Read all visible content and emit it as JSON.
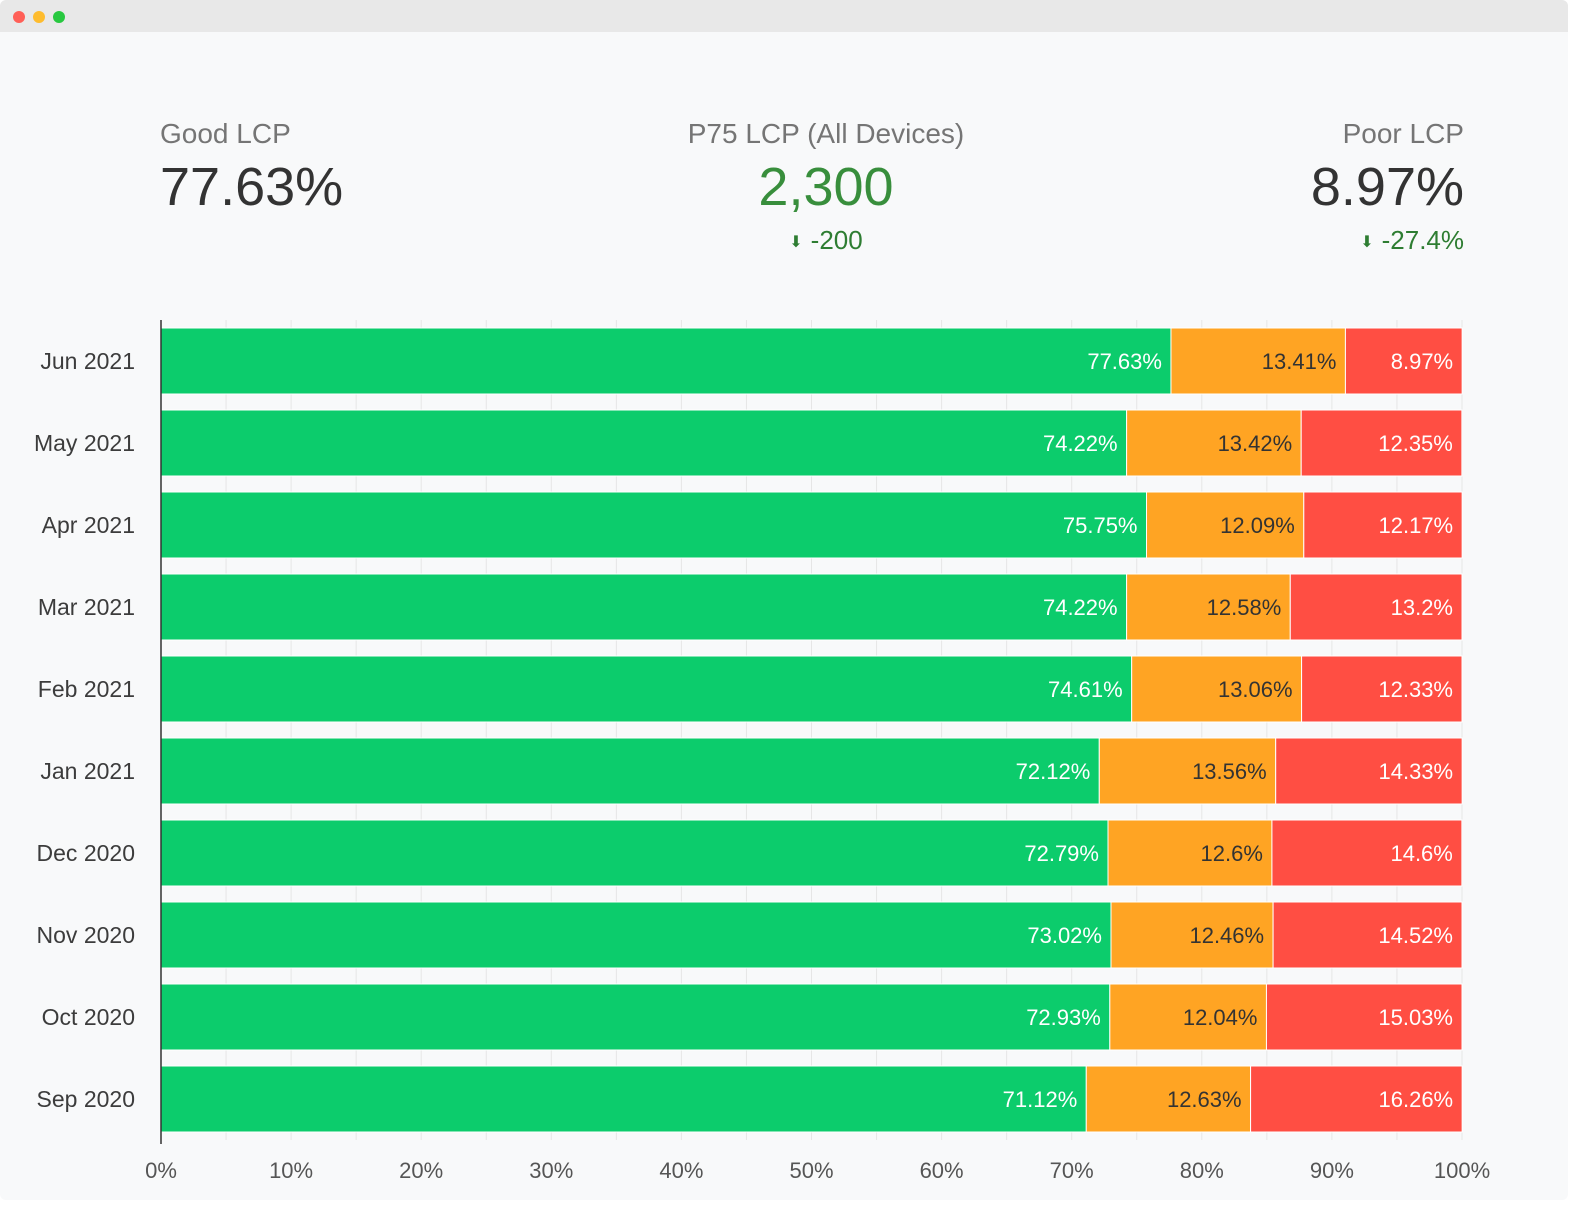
{
  "kpis": {
    "good": {
      "label": "Good LCP",
      "value": "77.63%"
    },
    "p75": {
      "label": "P75 LCP (All Devices)",
      "value": "2,300",
      "delta": "-200",
      "delta_color": "#2e7d32",
      "value_color": "#388e3c"
    },
    "poor": {
      "label": "Poor LCP",
      "value": "8.97%",
      "delta": "-27.4%",
      "delta_color": "#2e7d32"
    }
  },
  "chart_data": {
    "type": "bar",
    "orientation": "horizontal",
    "stacked": true,
    "categories": [
      "Jun 2021",
      "May 2021",
      "Apr 2021",
      "Mar 2021",
      "Feb 2021",
      "Jan 2021",
      "Dec 2020",
      "Nov 2020",
      "Oct 2020",
      "Sep 2020"
    ],
    "series": [
      {
        "values": [
          77.63,
          74.22,
          75.75,
          74.22,
          74.61,
          72.12,
          72.79,
          73.02,
          72.93,
          71.12
        ],
        "labels": [
          "77.63%",
          "74.22%",
          "75.75%",
          "74.22%",
          "74.61%",
          "72.12%",
          "72.79%",
          "73.02%",
          "72.93%",
          "71.12%"
        ],
        "color": "#0ccc6c",
        "label_color": "#ffffff"
      },
      {
        "values": [
          13.41,
          13.42,
          12.09,
          12.58,
          13.06,
          13.56,
          12.6,
          12.46,
          12.04,
          12.63
        ],
        "labels": [
          "13.41%",
          "13.42%",
          "12.09%",
          "12.58%",
          "13.06%",
          "13.56%",
          "12.6%",
          "12.46%",
          "12.04%",
          "12.63%"
        ],
        "color": "#ffa423",
        "label_color": "#333333"
      },
      {
        "values": [
          8.97,
          12.35,
          12.17,
          13.2,
          12.33,
          14.33,
          14.6,
          14.52,
          15.03,
          16.26
        ],
        "labels": [
          "8.97%",
          "12.35%",
          "12.17%",
          "13.2%",
          "12.33%",
          "14.33%",
          "14.6%",
          "14.52%",
          "15.03%",
          "16.26%"
        ],
        "color": "#ff4e43",
        "label_color": "#ffffff"
      }
    ],
    "xlim": [
      0,
      100
    ],
    "x_ticks": [
      "0%",
      "10%",
      "20%",
      "30%",
      "40%",
      "50%",
      "60%",
      "70%",
      "80%",
      "90%",
      "100%"
    ],
    "grid": true,
    "legend": "none"
  }
}
